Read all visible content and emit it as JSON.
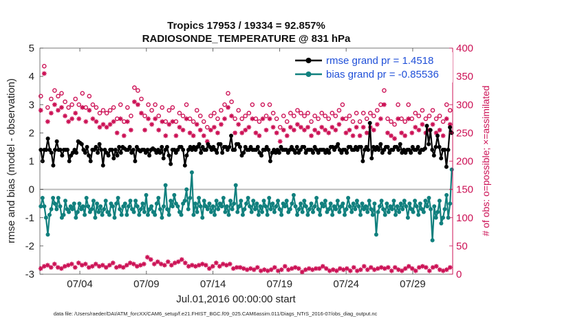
{
  "chart_data": {
    "type": "line",
    "title": "Tropics 17953 / 19334 = 92.857%",
    "subtitle": "RADIOSONDE_TEMPERATURE @ 831 hPa",
    "xlabel": "Jul.01,2016 00:00:00 start",
    "ylabel": "rmse and bias (model - observation)",
    "ylabel_right": "# of obs: o=possible; ×=assimilated",
    "footer": "data file: /Users/raeder/DAI/ATM_forcXX/CAM6_setup/f.e21.FHIST_BGC.f09_025.CAM6assim.011/Diags_NTrS_2016-07/obs_diag_output.nc",
    "xlim": [
      0,
      31
    ],
    "ylim": [
      -3,
      5
    ],
    "ylim_right": [
      0,
      400
    ],
    "x_ticks": [
      {
        "value": 3,
        "label": "07/04"
      },
      {
        "value": 8,
        "label": "07/09"
      },
      {
        "value": 13,
        "label": "07/14"
      },
      {
        "value": 18,
        "label": "07/19"
      },
      {
        "value": 23,
        "label": "07/24"
      },
      {
        "value": 28,
        "label": "07/29"
      }
    ],
    "y_ticks": [
      -3,
      -2,
      -1,
      0,
      1,
      2,
      3,
      4,
      5
    ],
    "y_ticks_right": [
      0,
      50,
      100,
      150,
      200,
      250,
      300,
      350,
      400
    ],
    "zero_line": 0,
    "legend": [
      {
        "name": "rmse grand pr = 1.4518",
        "color": "#000000"
      },
      {
        "name": "bias grand pr = -0.85536",
        "color": "#11807e"
      }
    ],
    "series": [
      {
        "name": "rmse grand pr = 1.4518",
        "axis": "left",
        "color": "#000000",
        "values": [
          1.4,
          1.0,
          1.4,
          1.4,
          1.8,
          1.4,
          1.3,
          0.85,
          1.4,
          1.7,
          1.4,
          1.4,
          1.2,
          1.4,
          1.4,
          1.4,
          1.0,
          1.2,
          1.3,
          1.4,
          1.3,
          1.7,
          1.65,
          1.6,
          1.4,
          1.3,
          1.5,
          1.2,
          1.0,
          1.4,
          1.4,
          1.5,
          1.3,
          1.6,
          1.4,
          0.85,
          1.4,
          1.3,
          1.2,
          1.4,
          1.4,
          1.1,
          1.4,
          1.2,
          1.5,
          1.3,
          1.5,
          1.45,
          1.4,
          1.4,
          1.5,
          1.3,
          1.4,
          1.0,
          1.5,
          1.4,
          1.35,
          1.4,
          1.4,
          1.3,
          1.4,
          1.2,
          1.4,
          1.45,
          1.4,
          1.3,
          1.4,
          1.3,
          1.5,
          1.1,
          1.4,
          1.5,
          1.2,
          0.9,
          1.4,
          1.4,
          1.3,
          1.4,
          1.5,
          1.5,
          1.4,
          0.85,
          1.2,
          1.4,
          1.5,
          1.4,
          1.5,
          1.4,
          1.5,
          1.6,
          1.3,
          1.5,
          1.4,
          1.4,
          1.6,
          1.5,
          1.4,
          1.5,
          1.4,
          1.3,
          1.6,
          1.6,
          1.3,
          1.5,
          1.5,
          1.4,
          1.5,
          1.9,
          1.4,
          1.4,
          1.6,
          1.6,
          1.5,
          1.2,
          1.3,
          1.5,
          1.4,
          1.4,
          1.5,
          1.4,
          1.4,
          1.4,
          1.5,
          1.3,
          1.2,
          1.4,
          1.4,
          1.5,
          1.4,
          1.0,
          1.3,
          1.4,
          1.3,
          1.4,
          1.3,
          1.5,
          1.4,
          1.4,
          1.4,
          1.3,
          1.4,
          1.5,
          1.4,
          1.3,
          1.5,
          1.3,
          1.4,
          1.5,
          1.5,
          1.3,
          1.4,
          1.4,
          1.4,
          1.3,
          1.5,
          1.4,
          1.3,
          1.4,
          1.4,
          1.4,
          1.3,
          1.4,
          1.3,
          1.5,
          1.5,
          1.4,
          1.5,
          1.6,
          1.4,
          1.3,
          1.4,
          1.4,
          1.3,
          1.5,
          1.5,
          1.4,
          1.4,
          1.5,
          1.4,
          1.5,
          1.5,
          1.0,
          1.4,
          1.5,
          1.4,
          2.35,
          1.1,
          1.5,
          1.4,
          1.5,
          1.4,
          1.6,
          1.3,
          1.4,
          1.5,
          1.5,
          1.3,
          1.4,
          1.4,
          1.5,
          1.5,
          1.4,
          1.6,
          1.3,
          1.4,
          1.3,
          1.4,
          1.4,
          1.3,
          1.5,
          1.4,
          1.4,
          1.5,
          1.3,
          1.4,
          1.4,
          1.45,
          2.25,
          1.6,
          2.1,
          1.4,
          1.2,
          1.5,
          1.9,
          1.5,
          1.1,
          1.4,
          1.4,
          0.8,
          1.4,
          2.2,
          2.0
        ]
      },
      {
        "name": "bias grand pr = -0.85536",
        "axis": "left",
        "color": "#11807e",
        "values": [
          -0.6,
          -0.3,
          -0.6,
          -1.0,
          -1.6,
          -0.9,
          -0.7,
          -0.3,
          -0.5,
          -0.7,
          -0.3,
          -0.6,
          -1.0,
          -0.9,
          -0.4,
          -0.7,
          -0.8,
          -0.6,
          -0.7,
          -0.5,
          -1.0,
          -0.8,
          -0.5,
          -0.7,
          -0.6,
          -0.9,
          -0.3,
          -0.6,
          -0.8,
          -0.7,
          -0.4,
          -1.0,
          -0.5,
          -0.8,
          -0.6,
          -0.9,
          -0.7,
          -0.4,
          -0.8,
          -0.9,
          -0.5,
          -0.6,
          -1.0,
          -0.5,
          -0.3,
          -0.7,
          -0.9,
          -0.6,
          -0.5,
          -0.9,
          -0.6,
          -0.4,
          -0.7,
          -0.8,
          -0.4,
          -0.6,
          -0.9,
          -0.7,
          -0.5,
          -0.8,
          -0.2,
          -0.9,
          -0.7,
          -0.6,
          -0.8,
          -0.9,
          -0.5,
          -0.3,
          -0.7,
          -1.0,
          -0.6,
          0.15,
          -0.7,
          -0.9,
          -0.4,
          -0.6,
          -0.2,
          -0.5,
          -0.6,
          -0.8,
          -0.9,
          -0.5,
          -0.4,
          0.0,
          -0.7,
          -0.3,
          0.6,
          -0.9,
          -0.5,
          -0.8,
          -0.3,
          -0.6,
          -1.0,
          -0.4,
          -0.6,
          -0.7,
          -0.5,
          -0.8,
          -0.6,
          -0.9,
          -0.4,
          -0.7,
          -0.5,
          -0.6,
          -0.3,
          -0.8,
          -0.6,
          -0.9,
          -0.4,
          -0.7,
          -0.5,
          0.15,
          -0.8,
          -0.6,
          -0.4,
          -0.9,
          -0.7,
          -0.5,
          -0.3,
          -0.6,
          -0.8,
          -0.4,
          -0.7,
          -0.5,
          -0.9,
          -0.6,
          -0.8,
          -0.4,
          -0.6,
          -0.9,
          -0.3,
          -0.7,
          -0.5,
          -0.8,
          -0.6,
          -0.4,
          -0.7,
          -0.9,
          -0.5,
          -0.6,
          -0.4,
          -0.8,
          -0.7,
          -0.5,
          -0.2,
          -0.6,
          -0.9,
          -0.7,
          -0.5,
          -0.8,
          -0.4,
          -0.6,
          -0.9,
          -0.7,
          -0.5,
          -0.8,
          -0.6,
          -0.3,
          -0.7,
          -0.9,
          -0.5,
          -0.6,
          -0.4,
          -0.8,
          -0.7,
          -0.5,
          -0.9,
          -0.6,
          -0.7,
          -0.4,
          -0.8,
          -0.6,
          -0.5,
          -0.9,
          -0.7,
          -0.3,
          -0.6,
          -0.8,
          -0.5,
          -0.7,
          -0.4,
          -0.6,
          -0.9,
          -0.5,
          -0.7,
          -0.6,
          -0.8,
          -0.4,
          -0.7,
          -0.9,
          -0.5,
          -1.6,
          -0.8,
          -0.6,
          -0.4,
          -0.7,
          -0.9,
          -0.5,
          -0.8,
          -0.6,
          -0.7,
          -0.4,
          -0.9,
          -0.6,
          -0.8,
          -0.5,
          -0.7,
          -0.4,
          -0.6,
          -1.0,
          -0.5,
          -0.7,
          -0.8,
          -0.4,
          -0.6,
          -0.9,
          -0.5,
          -0.7,
          -0.8,
          -0.4,
          -0.6,
          -0.3,
          -0.7,
          -1.8,
          -0.6,
          -1.0,
          -0.8,
          -0.4,
          -1.2,
          -1.0,
          -0.7,
          -0.2,
          -1.0,
          -0.5,
          0.7
        ]
      },
      {
        "name": "obs possible",
        "axis": "right",
        "color": "#cc1155",
        "marker": "circle",
        "values": [
          315,
          355,
          368,
          305,
          295,
          320,
          310,
          300,
          325,
          305,
          315,
          330,
          320,
          295,
          305,
          310,
          295,
          325,
          300,
          320,
          310,
          295,
          300,
          305,
          320,
          310,
          295,
          305,
          315,
          290,
          300,
          310,
          295,
          305,
          285,
          275,
          290,
          300,
          285,
          275,
          290,
          280,
          295,
          285,
          275,
          290,
          300,
          280,
          270,
          285,
          295,
          265,
          280,
          290,
          330,
          340,
          325,
          300,
          310,
          295,
          280,
          270,
          300,
          285,
          290,
          270,
          300,
          265,
          280,
          290,
          295,
          285,
          270,
          300,
          290,
          280,
          295,
          275,
          270,
          295,
          285,
          265,
          280,
          270,
          300,
          285,
          275,
          265,
          270,
          285,
          290,
          300,
          280,
          275,
          270,
          285,
          260,
          275,
          280,
          300,
          285,
          270,
          275,
          265,
          290,
          285,
          300,
          330,
          320,
          300,
          305,
          285,
          275,
          295,
          290,
          280,
          275,
          305,
          280,
          270,
          285,
          290,
          300,
          280,
          275,
          290,
          270,
          285,
          300,
          265,
          280,
          275,
          300,
          290,
          285,
          270,
          275,
          290,
          260,
          285,
          280,
          300,
          270,
          275,
          285,
          295,
          280,
          275,
          290,
          270,
          285,
          260,
          280,
          300,
          285,
          275,
          270,
          290,
          280,
          285,
          275,
          300,
          285,
          270,
          280,
          290,
          275,
          300,
          285,
          270,
          280,
          265,
          290,
          285,
          300,
          270,
          275,
          285,
          280,
          290,
          270,
          300,
          285,
          275,
          270,
          280,
          285,
          290,
          275,
          300,
          285,
          265,
          280,
          275,
          290,
          285,
          300,
          270,
          325,
          300,
          275,
          285,
          270,
          290,
          265,
          280,
          300,
          285,
          275,
          290,
          270,
          285,
          300,
          280,
          275,
          290,
          285,
          270,
          280,
          300,
          290,
          285,
          275,
          300,
          280,
          270,
          290,
          285,
          275,
          300,
          280,
          290,
          270,
          285,
          300,
          275,
          290,
          280
        ]
      },
      {
        "name": "obs assimilated",
        "axis": "right",
        "color": "#cc1155",
        "marker": "asterisk",
        "values": [
          290,
          340,
          355,
          280,
          270,
          295,
          285,
          275,
          300,
          280,
          290,
          305,
          295,
          270,
          280,
          285,
          270,
          300,
          275,
          295,
          285,
          270,
          275,
          280,
          295,
          285,
          270,
          280,
          290,
          265,
          275,
          285,
          270,
          280,
          260,
          250,
          265,
          275,
          260,
          250,
          265,
          255,
          270,
          260,
          250,
          265,
          275,
          255,
          245,
          260,
          270,
          240,
          255,
          265,
          305,
          315,
          300,
          275,
          285,
          270,
          255,
          245,
          275,
          260,
          265,
          245,
          275,
          240,
          255,
          265,
          270,
          260,
          245,
          275,
          265,
          255,
          270,
          250,
          245,
          270,
          260,
          240,
          255,
          245,
          275,
          260,
          250,
          240,
          245,
          260,
          265,
          275,
          255,
          250,
          245,
          260,
          235,
          250,
          255,
          275,
          260,
          245,
          250,
          240,
          265,
          260,
          275,
          305,
          295,
          275,
          280,
          260,
          250,
          270,
          265,
          255,
          250,
          280,
          255,
          245,
          260,
          265,
          275,
          255,
          250,
          265,
          245,
          260,
          275,
          240,
          255,
          250,
          275,
          265,
          260,
          245,
          250,
          265,
          235,
          260,
          255,
          275,
          245,
          250,
          260,
          270,
          255,
          250,
          265,
          245,
          260,
          235,
          255,
          275,
          260,
          250,
          245,
          265,
          255,
          260,
          250,
          275,
          260,
          245,
          255,
          265,
          250,
          275,
          260,
          245,
          255,
          240,
          265,
          260,
          275,
          245,
          250,
          260,
          255,
          265,
          245,
          275,
          260,
          250,
          245,
          255,
          260,
          265,
          250,
          275,
          260,
          240,
          255,
          250,
          265,
          260,
          275,
          245,
          300,
          275,
          250,
          260,
          245,
          265,
          240,
          255,
          275,
          260,
          250,
          265,
          245,
          260,
          275,
          255,
          250,
          265,
          260,
          245,
          255,
          275,
          265,
          260,
          250,
          275,
          255,
          245,
          265,
          260,
          250,
          275,
          255,
          265,
          245,
          260,
          275,
          250,
          265,
          255
        ]
      },
      {
        "name": "obs count low",
        "axis": "right",
        "color": "#cc1155",
        "marker": "asterisk",
        "values": [
          10,
          12,
          14,
          12,
          16,
          10,
          12,
          14,
          18,
          16,
          12,
          14,
          10,
          16,
          14,
          12,
          16,
          14,
          18,
          14,
          12,
          16,
          20,
          14,
          16,
          12,
          18,
          14,
          12,
          16,
          14,
          12,
          18,
          16,
          14,
          12,
          16,
          14,
          12,
          18,
          16,
          14,
          20,
          16,
          12,
          18,
          14,
          16,
          12,
          18,
          16,
          14,
          20,
          22,
          18,
          16,
          14,
          18,
          16,
          20,
          18,
          22,
          30,
          24,
          26,
          20,
          18,
          24,
          22,
          16,
          18,
          20,
          16,
          18,
          22,
          20,
          16,
          18,
          20,
          24,
          22,
          20,
          26,
          18,
          20,
          16,
          14,
          18,
          16,
          20,
          14,
          12,
          16,
          14,
          18,
          12,
          16,
          14,
          10,
          12,
          14,
          16,
          20,
          22,
          14,
          20,
          18,
          14,
          16,
          12,
          18,
          14,
          10,
          16,
          12,
          10,
          12,
          8,
          10,
          4,
          8,
          12,
          10,
          14,
          8,
          10,
          12,
          8,
          6,
          10,
          8,
          12,
          6,
          4,
          8,
          10,
          12,
          8,
          6,
          10,
          8,
          12,
          14,
          10,
          8,
          6,
          10,
          8,
          12,
          6,
          10,
          8,
          4,
          12,
          8,
          14,
          10,
          6,
          8,
          12,
          10,
          4,
          10,
          6,
          14,
          12,
          10,
          8,
          6,
          10,
          8,
          12,
          6,
          8,
          10,
          12,
          8,
          14,
          10,
          8,
          6,
          10,
          12,
          8,
          6,
          10,
          8,
          12,
          14,
          10,
          8,
          6,
          12,
          10,
          8,
          14,
          10,
          6,
          12,
          8,
          10,
          14,
          12,
          8,
          6,
          10,
          12,
          14,
          8,
          10,
          6,
          12,
          10,
          8,
          14,
          12,
          10,
          8,
          6,
          10,
          12,
          8,
          14,
          10,
          12,
          8,
          6,
          10,
          12,
          8,
          14,
          10,
          8,
          12,
          6,
          10,
          8,
          14,
          12,
          0
        ]
      }
    ]
  }
}
